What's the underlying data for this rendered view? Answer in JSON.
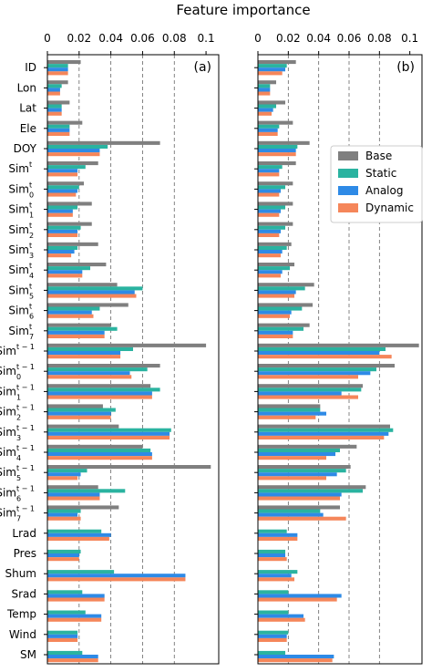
{
  "chart_data": {
    "type": "bar",
    "orientation": "horizontal",
    "title": "Feature importance",
    "x_ticks": [
      "0",
      "0.02",
      "0.04",
      "0.06",
      "0.08",
      "0.1"
    ],
    "xlim": [
      0,
      0.108
    ],
    "grid": "vertical dashed at 0.02, 0.04, 0.06, 0.08",
    "legend_position": "upper-right of panel (b)",
    "colors": {
      "Base": "#7f7f7f",
      "Static": "#2ab3a0",
      "Analog": "#2e8ae6",
      "Dynamic": "#f5865a"
    },
    "categories": [
      {
        "base": "ID"
      },
      {
        "base": "Lon"
      },
      {
        "base": "Lat"
      },
      {
        "base": "Ele"
      },
      {
        "base": "DOY"
      },
      {
        "base": "Sim",
        "sup": "t"
      },
      {
        "base": "Sim",
        "sup": "t",
        "sub": "0"
      },
      {
        "base": "Sim",
        "sup": "t",
        "sub": "1"
      },
      {
        "base": "Sim",
        "sup": "t",
        "sub": "2"
      },
      {
        "base": "Sim",
        "sup": "t",
        "sub": "3"
      },
      {
        "base": "Sim",
        "sup": "t",
        "sub": "4"
      },
      {
        "base": "Sim",
        "sup": "t",
        "sub": "5"
      },
      {
        "base": "Sim",
        "sup": "t",
        "sub": "6"
      },
      {
        "base": "Sim",
        "sup": "t",
        "sub": "7"
      },
      {
        "base": "Sim",
        "sup": "t − 1"
      },
      {
        "base": "Sim",
        "sup": "t − 1",
        "sub": "0"
      },
      {
        "base": "Sim",
        "sup": "t − 1",
        "sub": "1"
      },
      {
        "base": "Sim",
        "sup": "t − 1",
        "sub": "2"
      },
      {
        "base": "Sim",
        "sup": "t − 1",
        "sub": "3"
      },
      {
        "base": "Sim",
        "sup": "t − 1",
        "sub": "4"
      },
      {
        "base": "Sim",
        "sup": "t − 1",
        "sub": "5"
      },
      {
        "base": "Sim",
        "sup": "t − 1",
        "sub": "6"
      },
      {
        "base": "Sim",
        "sup": "t − 1",
        "sub": "7"
      },
      {
        "base": "Lrad"
      },
      {
        "base": "Pres"
      },
      {
        "base": "Shum"
      },
      {
        "base": "Srad"
      },
      {
        "base": "Temp"
      },
      {
        "base": "Wind"
      },
      {
        "base": "SM"
      }
    ],
    "panels": [
      {
        "label": "(a)",
        "series": [
          {
            "name": "Base",
            "values": [
              0.021,
              0.013,
              0.014,
              0.022,
              0.071,
              0.032,
              0.023,
              0.028,
              0.028,
              0.032,
              0.037,
              0.044,
              0.051,
              0.04,
              0.1,
              0.071,
              0.065,
              0.035,
              0.045,
              0.06,
              0.103,
              0.032,
              0.045,
              null,
              null,
              null,
              null,
              null,
              null,
              null
            ]
          },
          {
            "name": "Static",
            "values": [
              0.013,
              0.009,
              0.009,
              0.014,
              0.038,
              0.024,
              0.02,
              0.019,
              0.021,
              0.019,
              0.027,
              0.06,
              0.033,
              0.044,
              0.054,
              0.063,
              0.071,
              0.043,
              0.078,
              0.065,
              0.025,
              0.049,
              0.021,
              0.034,
              0.021,
              0.042,
              0.022,
              0.024,
              0.019,
              0.022
            ]
          },
          {
            "name": "Analog",
            "values": [
              0.013,
              0.008,
              0.009,
              0.014,
              0.033,
              0.019,
              0.019,
              0.016,
              0.019,
              0.017,
              0.022,
              0.055,
              0.028,
              0.036,
              0.046,
              0.052,
              0.066,
              0.04,
              0.077,
              0.066,
              0.021,
              0.033,
              0.019,
              0.04,
              0.02,
              0.087,
              0.036,
              0.034,
              0.019,
              0.032
            ]
          },
          {
            "name": "Dynamic",
            "values": [
              0.013,
              0.008,
              0.009,
              0.014,
              0.033,
              0.019,
              0.018,
              0.016,
              0.019,
              0.015,
              0.022,
              0.056,
              0.029,
              0.036,
              0.046,
              0.053,
              0.066,
              0.04,
              0.077,
              0.066,
              0.019,
              0.033,
              0.021,
              0.039,
              0.02,
              0.087,
              0.036,
              0.034,
              0.019,
              0.032
            ]
          }
        ]
      },
      {
        "label": "(b)",
        "series": [
          {
            "name": "Base",
            "values": [
              0.025,
              0.012,
              0.018,
              0.023,
              0.034,
              0.025,
              0.023,
              0.023,
              0.023,
              0.022,
              0.024,
              0.037,
              0.036,
              0.034,
              0.106,
              0.09,
              0.069,
              0.041,
              0.087,
              0.065,
              0.061,
              0.071,
              0.054,
              null,
              null,
              null,
              null,
              null,
              null,
              null
            ]
          },
          {
            "name": "Static",
            "values": [
              0.019,
              0.008,
              0.012,
              0.014,
              0.026,
              0.016,
              0.018,
              0.018,
              0.018,
              0.019,
              0.021,
              0.031,
              0.029,
              0.03,
              0.084,
              0.078,
              0.068,
              0.041,
              0.089,
              0.054,
              0.058,
              0.069,
              0.041,
              0.019,
              0.018,
              0.026,
              0.02,
              0.02,
              0.02,
              0.018
            ]
          },
          {
            "name": "Analog",
            "values": [
              0.018,
              0.008,
              0.01,
              0.013,
              0.025,
              0.014,
              0.015,
              0.015,
              0.015,
              0.016,
              0.016,
              0.025,
              0.022,
              0.023,
              0.08,
              0.074,
              0.055,
              0.045,
              0.086,
              0.051,
              0.052,
              0.055,
              0.043,
              0.026,
              0.018,
              0.022,
              0.055,
              0.03,
              0.019,
              0.05
            ]
          },
          {
            "name": "Dynamic",
            "values": [
              0.016,
              0.008,
              0.009,
              0.013,
              0.025,
              0.014,
              0.014,
              0.014,
              0.014,
              0.015,
              0.015,
              0.024,
              0.021,
              0.023,
              0.088,
              0.066,
              0.066,
              0.038,
              0.083,
              0.045,
              0.045,
              0.054,
              0.058,
              0.026,
              0.019,
              0.024,
              0.052,
              0.031,
              0.019,
              0.049
            ]
          }
        ]
      }
    ]
  }
}
